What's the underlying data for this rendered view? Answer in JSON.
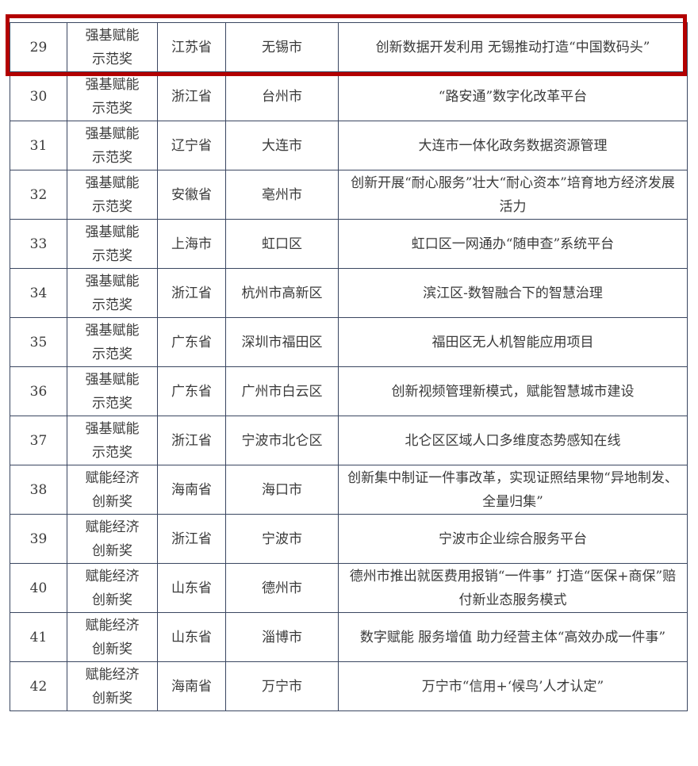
{
  "highlight_color": "#b30000",
  "rows": [
    {
      "no": "29",
      "award": [
        "强基赋能",
        "示范奖"
      ],
      "province": "江苏省",
      "city": "无锡市",
      "project": "创新数据开发利用 无锡推动打造“中国数码头”"
    },
    {
      "no": "30",
      "award": [
        "强基赋能",
        "示范奖"
      ],
      "province": "浙江省",
      "city": "台州市",
      "project": "“路安通”数字化改革平台"
    },
    {
      "no": "31",
      "award": [
        "强基赋能",
        "示范奖"
      ],
      "province": "辽宁省",
      "city": "大连市",
      "project": "大连市一体化政务数据资源管理"
    },
    {
      "no": "32",
      "award": [
        "强基赋能",
        "示范奖"
      ],
      "province": "安徽省",
      "city": "亳州市",
      "project": "创新开展“耐心服务”壮大“耐心资本”培育地方经济发展活力"
    },
    {
      "no": "33",
      "award": [
        "强基赋能",
        "示范奖"
      ],
      "province": "上海市",
      "city": "虹口区",
      "project": "虹口区一网通办“随申查”系统平台"
    },
    {
      "no": "34",
      "award": [
        "强基赋能",
        "示范奖"
      ],
      "province": "浙江省",
      "city": "杭州市高新区",
      "project": "滨江区-数智融合下的智慧治理"
    },
    {
      "no": "35",
      "award": [
        "强基赋能",
        "示范奖"
      ],
      "province": "广东省",
      "city": "深圳市福田区",
      "project": "福田区无人机智能应用项目"
    },
    {
      "no": "36",
      "award": [
        "强基赋能",
        "示范奖"
      ],
      "province": "广东省",
      "city": "广州市白云区",
      "project": "创新视频管理新模式，赋能智慧城市建设"
    },
    {
      "no": "37",
      "award": [
        "强基赋能",
        "示范奖"
      ],
      "province": "浙江省",
      "city": "宁波市北仑区",
      "project": "北仑区区域人口多维度态势感知在线"
    },
    {
      "no": "38",
      "award": [
        "赋能经济",
        "创新奖"
      ],
      "province": "海南省",
      "city": "海口市",
      "project": "创新集中制证一件事改革，实现证照结果物“异地制发、全量归集”"
    },
    {
      "no": "39",
      "award": [
        "赋能经济",
        "创新奖"
      ],
      "province": "浙江省",
      "city": "宁波市",
      "project": "宁波市企业综合服务平台"
    },
    {
      "no": "40",
      "award": [
        "赋能经济",
        "创新奖"
      ],
      "province": "山东省",
      "city": "德州市",
      "project": "德州市推出就医费用报销“一件事” 打造“医保+商保”赔付新业态服务模式"
    },
    {
      "no": "41",
      "award": [
        "赋能经济",
        "创新奖"
      ],
      "province": "山东省",
      "city": "淄博市",
      "project": "数字赋能 服务增值 助力经营主体“高效办成一件事”"
    },
    {
      "no": "42",
      "award": [
        "赋能经济",
        "创新奖"
      ],
      "province": "海南省",
      "city": "万宁市",
      "project": "万宁市“信用+‘候鸟’人才认定”"
    }
  ]
}
